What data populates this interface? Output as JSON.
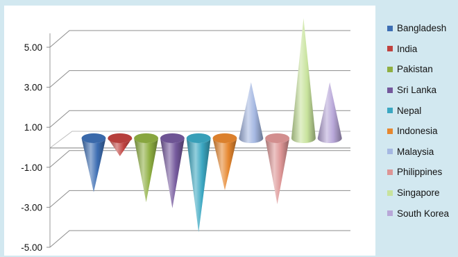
{
  "chart_data": {
    "type": "bar",
    "bar_shape": "3d-cone",
    "categories": [
      "Bangladesh",
      "India",
      "Pakistan",
      "Sri Lanka",
      "Nepal",
      "Indonesia",
      "Malaysia",
      "Philippines",
      "Singapore",
      "South Korea"
    ],
    "values": [
      -2.7,
      -0.9,
      -3.2,
      -3.5,
      -4.7,
      -2.6,
      2.8,
      -3.3,
      6.0,
      2.8
    ],
    "colors": [
      "#3d6eb3",
      "#c0423f",
      "#8faf42",
      "#74589c",
      "#3ba7c2",
      "#e6872f",
      "#a5b8e2",
      "#dd9595",
      "#c8e39d",
      "#b8a7d8"
    ],
    "ylim": [
      -5,
      5
    ],
    "ytick_labels": [
      "5.00",
      "3.00",
      "1.00",
      "-1.00",
      "-3.00",
      "-5.00"
    ],
    "grid": true,
    "legend_position": "right",
    "title": "",
    "xlabel": "",
    "ylabel": ""
  },
  "legend": {
    "items": [
      {
        "label": "Bangladesh",
        "color": "#3d6eb3"
      },
      {
        "label": "India",
        "color": "#c0423f"
      },
      {
        "label": "Pakistan",
        "color": "#8faf42"
      },
      {
        "label": "Sri Lanka",
        "color": "#74589c"
      },
      {
        "label": "Nepal",
        "color": "#3ba7c2"
      },
      {
        "label": "Indonesia",
        "color": "#e6872f"
      },
      {
        "label": "Malaysia",
        "color": "#a5b8e2"
      },
      {
        "label": "Philippines",
        "color": "#dd9595"
      },
      {
        "label": "Singapore",
        "color": "#c8e39d"
      },
      {
        "label": "South Korea",
        "color": "#b8a7d8"
      }
    ]
  }
}
